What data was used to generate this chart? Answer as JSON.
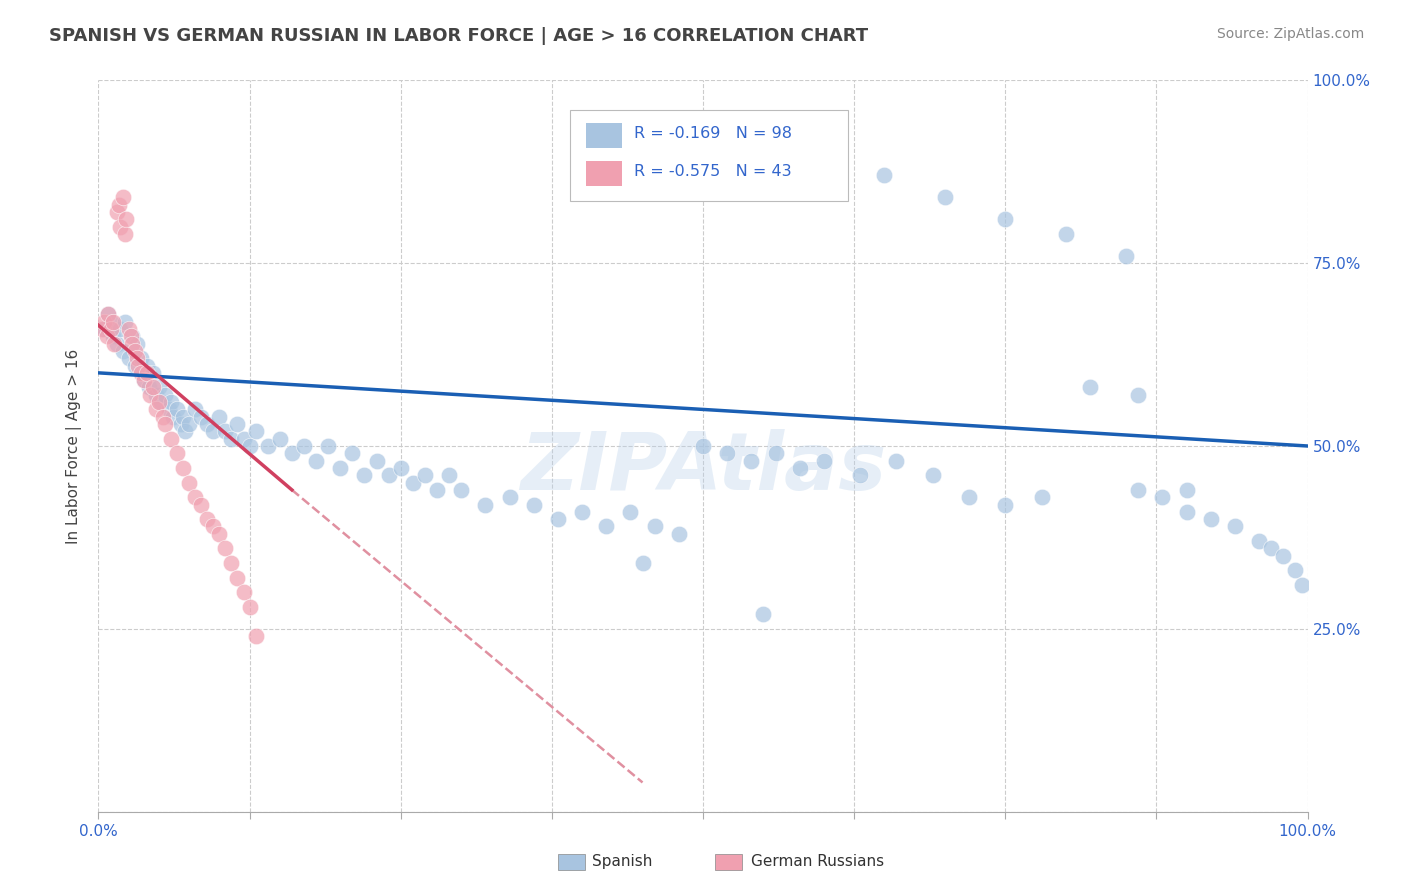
{
  "title": "SPANISH VS GERMAN RUSSIAN IN LABOR FORCE | AGE > 16 CORRELATION CHART",
  "source": "Source: ZipAtlas.com",
  "ylabel": "In Labor Force | Age > 16",
  "watermark": "ZIPAtlas",
  "legend_line1": "R = -0.169   N = 98",
  "legend_line2": "R = -0.575   N = 43",
  "legend_label1": "Spanish",
  "legend_label2": "German Russians",
  "blue_color": "#a8c4e0",
  "pink_color": "#f0a0b0",
  "blue_fill": "#a8c4e0",
  "pink_fill": "#f0a0b0",
  "blue_line_color": "#1a5fb4",
  "pink_line_color": "#d04060",
  "dashed_line_color": "#e090a0",
  "bg_color": "#ffffff",
  "grid_color": "#cccccc",
  "text_color": "#3366cc",
  "title_color": "#444444",
  "source_color": "#888888",
  "xlim": [
    0.0,
    1.0
  ],
  "ylim": [
    0.0,
    1.0
  ],
  "spanish_x": [
    0.005,
    0.008,
    0.01,
    0.012,
    0.015,
    0.018,
    0.02,
    0.022,
    0.025,
    0.028,
    0.03,
    0.032,
    0.035,
    0.038,
    0.04,
    0.042,
    0.045,
    0.048,
    0.05,
    0.052,
    0.055,
    0.058,
    0.06,
    0.062,
    0.065,
    0.068,
    0.07,
    0.072,
    0.075,
    0.08,
    0.085,
    0.09,
    0.095,
    0.1,
    0.105,
    0.11,
    0.115,
    0.12,
    0.125,
    0.13,
    0.14,
    0.15,
    0.16,
    0.17,
    0.18,
    0.19,
    0.2,
    0.21,
    0.22,
    0.23,
    0.24,
    0.25,
    0.26,
    0.27,
    0.28,
    0.29,
    0.3,
    0.32,
    0.34,
    0.36,
    0.38,
    0.4,
    0.42,
    0.44,
    0.46,
    0.48,
    0.5,
    0.52,
    0.54,
    0.56,
    0.58,
    0.6,
    0.63,
    0.66,
    0.69,
    0.72,
    0.75,
    0.78,
    0.82,
    0.86,
    0.86,
    0.88,
    0.9,
    0.92,
    0.94,
    0.96,
    0.97,
    0.98,
    0.99,
    0.995,
    0.65,
    0.7,
    0.75,
    0.8,
    0.85,
    0.9,
    0.45,
    0.55
  ],
  "spanish_y": [
    0.66,
    0.68,
    0.67,
    0.65,
    0.64,
    0.66,
    0.63,
    0.67,
    0.62,
    0.65,
    0.61,
    0.64,
    0.62,
    0.59,
    0.61,
    0.58,
    0.6,
    0.57,
    0.58,
    0.56,
    0.57,
    0.55,
    0.56,
    0.54,
    0.55,
    0.53,
    0.54,
    0.52,
    0.53,
    0.55,
    0.54,
    0.53,
    0.52,
    0.54,
    0.52,
    0.51,
    0.53,
    0.51,
    0.5,
    0.52,
    0.5,
    0.51,
    0.49,
    0.5,
    0.48,
    0.5,
    0.47,
    0.49,
    0.46,
    0.48,
    0.46,
    0.47,
    0.45,
    0.46,
    0.44,
    0.46,
    0.44,
    0.42,
    0.43,
    0.42,
    0.4,
    0.41,
    0.39,
    0.41,
    0.39,
    0.38,
    0.5,
    0.49,
    0.48,
    0.49,
    0.47,
    0.48,
    0.46,
    0.48,
    0.46,
    0.43,
    0.42,
    0.43,
    0.58,
    0.57,
    0.44,
    0.43,
    0.41,
    0.4,
    0.39,
    0.37,
    0.36,
    0.35,
    0.33,
    0.31,
    0.87,
    0.84,
    0.81,
    0.79,
    0.76,
    0.44,
    0.34,
    0.27
  ],
  "german_x": [
    0.003,
    0.005,
    0.007,
    0.008,
    0.01,
    0.012,
    0.013,
    0.015,
    0.017,
    0.018,
    0.02,
    0.022,
    0.023,
    0.025,
    0.027,
    0.028,
    0.03,
    0.032,
    0.033,
    0.035,
    0.038,
    0.04,
    0.043,
    0.045,
    0.048,
    0.05,
    0.053,
    0.055,
    0.06,
    0.065,
    0.07,
    0.075,
    0.08,
    0.085,
    0.09,
    0.095,
    0.1,
    0.105,
    0.11,
    0.115,
    0.12,
    0.125,
    0.13
  ],
  "german_y": [
    0.66,
    0.67,
    0.65,
    0.68,
    0.66,
    0.67,
    0.64,
    0.82,
    0.83,
    0.8,
    0.84,
    0.79,
    0.81,
    0.66,
    0.65,
    0.64,
    0.63,
    0.62,
    0.61,
    0.6,
    0.59,
    0.6,
    0.57,
    0.58,
    0.55,
    0.56,
    0.54,
    0.53,
    0.51,
    0.49,
    0.47,
    0.45,
    0.43,
    0.42,
    0.4,
    0.39,
    0.38,
    0.36,
    0.34,
    0.32,
    0.3,
    0.28,
    0.24
  ],
  "blue_trendline_x": [
    0.0,
    1.0
  ],
  "blue_trendline_y": [
    0.6,
    0.5
  ],
  "pink_trendline_x": [
    0.0,
    0.16
  ],
  "pink_trendline_y": [
    0.665,
    0.44
  ],
  "dashed_trendline_x": [
    0.16,
    0.45
  ],
  "dashed_trendline_y": [
    0.44,
    0.04
  ],
  "yticks": [
    0.0,
    0.25,
    0.5,
    0.75,
    1.0
  ],
  "ytick_labels_right": [
    "",
    "25.0%",
    "50.0%",
    "75.0%",
    "100.0%"
  ],
  "xticks": [
    0.0,
    0.125,
    0.25,
    0.375,
    0.5,
    0.625,
    0.75,
    0.875,
    1.0
  ],
  "xtick_labels": [
    "0.0%",
    "",
    "",
    "",
    "",
    "",
    "",
    "",
    "100.0%"
  ]
}
